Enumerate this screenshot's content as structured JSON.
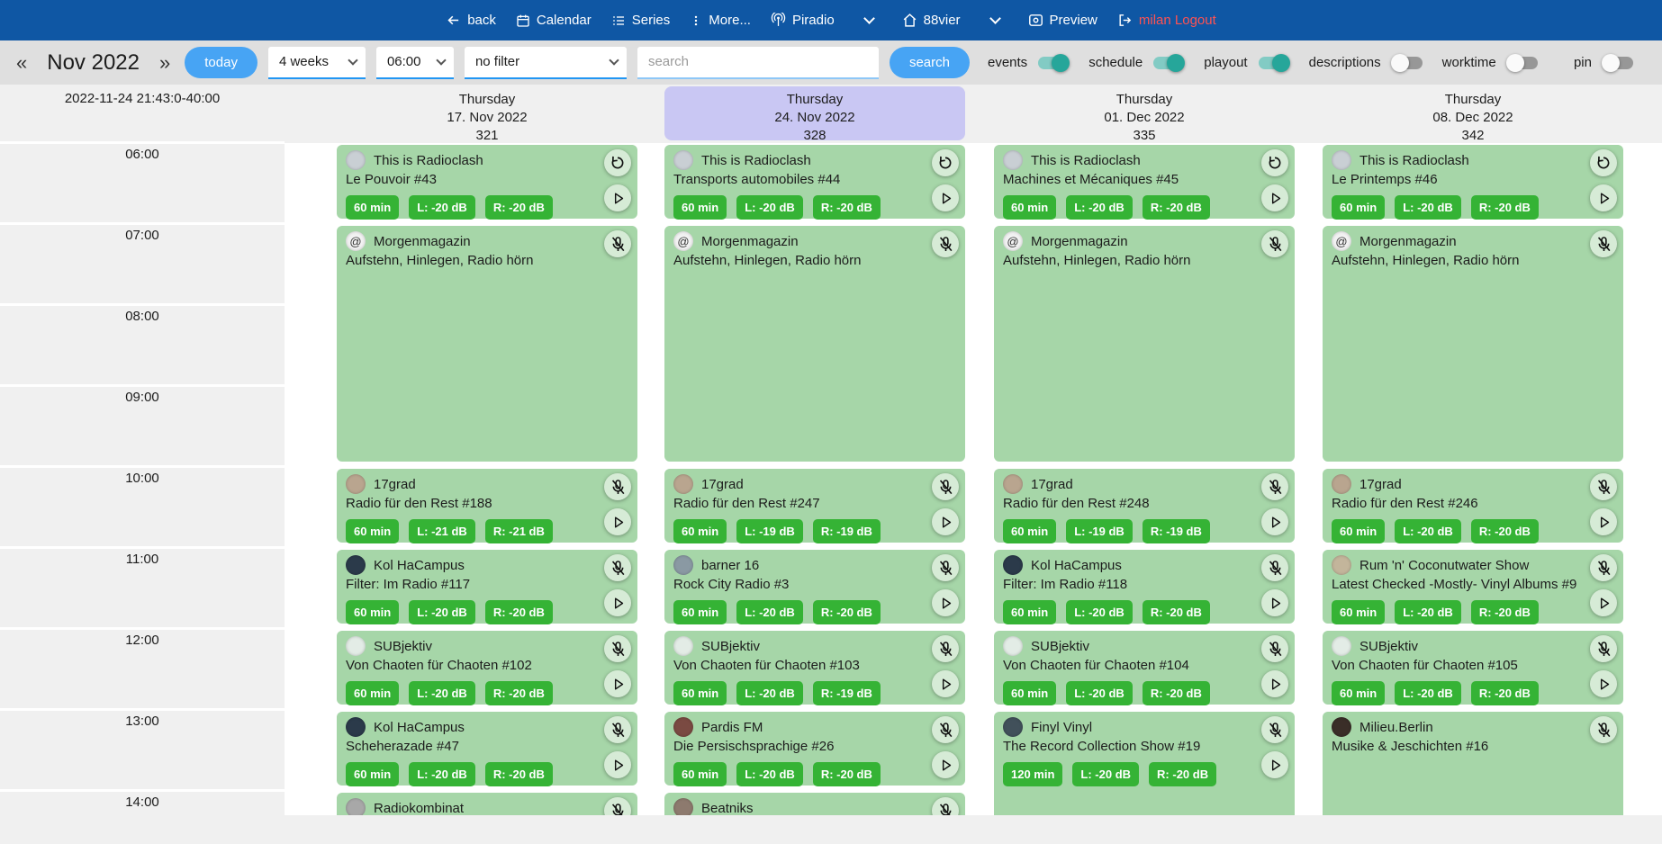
{
  "nav": {
    "back": "back",
    "calendar": "Calendar",
    "series": "Series",
    "more": "More...",
    "station": "Piradio",
    "channel": "88vier",
    "preview": "Preview",
    "logout": "milan Logout"
  },
  "toolbar": {
    "prev": "«",
    "next": "»",
    "month_label": "Nov 2022",
    "today_button": "today",
    "range_select": "4 weeks",
    "time_select": "06:00",
    "filter_select": "no filter",
    "search_placeholder": "search",
    "search_button": "search",
    "toggles": [
      {
        "label": "events",
        "on": true
      },
      {
        "label": "schedule",
        "on": true
      },
      {
        "label": "playout",
        "on": true
      },
      {
        "label": "descriptions",
        "on": false
      },
      {
        "label": "worktime",
        "on": false
      },
      {
        "label": "pin",
        "on": false,
        "align": "right"
      }
    ]
  },
  "timeline": {
    "now_label": "2022-11-24 21:43:0-40:00",
    "hours": [
      "06:00",
      "07:00",
      "08:00",
      "09:00",
      "10:00",
      "11:00",
      "12:00",
      "13:00",
      "14:00"
    ]
  },
  "colors": {
    "nav_blue": "#0f57a4",
    "accent_blue": "#47a4f4",
    "event_green": "#a6d6a8",
    "badge_green": "#35b335",
    "highlight_purple": "#c9c7f3",
    "logout_red": "#ff5252",
    "toggle_on": "#26a69a"
  },
  "columns": [
    {
      "day": "Thursday",
      "date": "17. Nov 2022",
      "daynum": "321",
      "highlight": false,
      "events": [
        {
          "title": "This is Radioclash",
          "subtitle": "Le Pouvoir #43",
          "start": 6,
          "dur": 1,
          "badges": [
            "60 min",
            "L: -20 dB",
            "R: -20 dB"
          ],
          "icons": [
            "replay",
            "play"
          ],
          "avatar": "#c9cfd4"
        },
        {
          "title": "Morgenmagazin",
          "subtitle": "Aufstehn, Hinlegen, Radio hörn",
          "start": 7,
          "dur": 3,
          "badges": [],
          "icons": [
            "mic-off"
          ],
          "avatar": "#f2f2f2",
          "avatar_glyph": "@"
        },
        {
          "title": "17grad",
          "subtitle": "Radio für den Rest #188",
          "start": 10,
          "dur": 1,
          "badges": [
            "60 min",
            "L: -21 dB",
            "R: -21 dB"
          ],
          "icons": [
            "mic-off",
            "play"
          ],
          "avatar": "#b9a58f"
        },
        {
          "title": "Kol HaCampus",
          "subtitle": "Filter: Im Radio #117",
          "start": 11,
          "dur": 1,
          "badges": [
            "60 min",
            "L: -20 dB",
            "R: -20 dB"
          ],
          "icons": [
            "mic-off",
            "play"
          ],
          "avatar": "#2b3a4a"
        },
        {
          "title": "SUBjektiv",
          "subtitle": "Von Chaoten für Chaoten #102",
          "start": 12,
          "dur": 1,
          "badges": [
            "60 min",
            "L: -20 dB",
            "R: -20 dB"
          ],
          "icons": [
            "mic-off",
            "play"
          ],
          "avatar": "#e3ece6"
        },
        {
          "title": "Kol HaCampus",
          "subtitle": "Scheherazade #47",
          "start": 13,
          "dur": 1,
          "badges": [
            "60 min",
            "L: -20 dB",
            "R: -20 dB"
          ],
          "icons": [
            "mic-off",
            "play"
          ],
          "avatar": "#2b3a4a"
        },
        {
          "title": "Radiokombinat",
          "subtitle": "",
          "start": 14,
          "dur": 1,
          "badges": [],
          "icons": [
            "mic-off"
          ],
          "avatar": "#a8a8a8"
        }
      ]
    },
    {
      "day": "Thursday",
      "date": "24. Nov 2022",
      "daynum": "328",
      "highlight": true,
      "events": [
        {
          "title": "This is Radioclash",
          "subtitle": "Transports automobiles #44",
          "start": 6,
          "dur": 1,
          "badges": [
            "60 min",
            "L: -20 dB",
            "R: -20 dB"
          ],
          "icons": [
            "replay",
            "play"
          ],
          "avatar": "#c9cfd4"
        },
        {
          "title": "Morgenmagazin",
          "subtitle": "Aufstehn, Hinlegen, Radio hörn",
          "start": 7,
          "dur": 3,
          "badges": [],
          "icons": [
            "mic-off"
          ],
          "avatar": "#f2f2f2",
          "avatar_glyph": "@"
        },
        {
          "title": "17grad",
          "subtitle": "Radio für den Rest #247",
          "start": 10,
          "dur": 1,
          "badges": [
            "60 min",
            "L: -19 dB",
            "R: -19 dB"
          ],
          "icons": [
            "mic-off",
            "play"
          ],
          "avatar": "#b9a58f"
        },
        {
          "title": "barner 16",
          "subtitle": "Rock City Radio #3",
          "start": 11,
          "dur": 1,
          "badges": [
            "60 min",
            "L: -20 dB",
            "R: -20 dB"
          ],
          "icons": [
            "mic-off",
            "play"
          ],
          "avatar": "#8a99a3"
        },
        {
          "title": "SUBjektiv",
          "subtitle": "Von Chaoten für Chaoten #103",
          "start": 12,
          "dur": 1,
          "badges": [
            "60 min",
            "L: -20 dB",
            "R: -19 dB"
          ],
          "icons": [
            "mic-off",
            "play"
          ],
          "avatar": "#e3ece6"
        },
        {
          "title": "Pardis FM",
          "subtitle": "Die Persischsprachige #26",
          "start": 13,
          "dur": 1,
          "badges": [
            "60 min",
            "L: -20 dB",
            "R: -20 dB"
          ],
          "icons": [
            "mic-off",
            "play"
          ],
          "avatar": "#7a4a42"
        },
        {
          "title": "Beatniks",
          "subtitle": "",
          "start": 14,
          "dur": 1,
          "badges": [],
          "icons": [
            "mic-off"
          ],
          "avatar": "#8d7a6e"
        }
      ]
    },
    {
      "day": "Thursday",
      "date": "01. Dec 2022",
      "daynum": "335",
      "highlight": false,
      "events": [
        {
          "title": "This is Radioclash",
          "subtitle": "Machines et Mécaniques #45",
          "start": 6,
          "dur": 1,
          "badges": [
            "60 min",
            "L: -20 dB",
            "R: -20 dB"
          ],
          "icons": [
            "replay",
            "play"
          ],
          "avatar": "#c9cfd4"
        },
        {
          "title": "Morgenmagazin",
          "subtitle": "Aufstehn, Hinlegen, Radio hörn",
          "start": 7,
          "dur": 3,
          "badges": [],
          "icons": [
            "mic-off"
          ],
          "avatar": "#f2f2f2",
          "avatar_glyph": "@"
        },
        {
          "title": "17grad",
          "subtitle": "Radio für den Rest #248",
          "start": 10,
          "dur": 1,
          "badges": [
            "60 min",
            "L: -19 dB",
            "R: -19 dB"
          ],
          "icons": [
            "mic-off",
            "play"
          ],
          "avatar": "#b9a58f"
        },
        {
          "title": "Kol HaCampus",
          "subtitle": "Filter: Im Radio #118",
          "start": 11,
          "dur": 1,
          "badges": [
            "60 min",
            "L: -20 dB",
            "R: -20 dB"
          ],
          "icons": [
            "mic-off",
            "play"
          ],
          "avatar": "#2b3a4a"
        },
        {
          "title": "SUBjektiv",
          "subtitle": "Von Chaoten für Chaoten #104",
          "start": 12,
          "dur": 1,
          "badges": [
            "60 min",
            "L: -20 dB",
            "R: -20 dB"
          ],
          "icons": [
            "mic-off",
            "play"
          ],
          "avatar": "#e3ece6"
        },
        {
          "title": "Finyl Vinyl",
          "subtitle": "The Record Collection Show #19",
          "start": 13,
          "dur": 2,
          "badges": [
            "120 min",
            "L: -20 dB",
            "R: -20 dB"
          ],
          "icons": [
            "mic-off",
            "play"
          ],
          "avatar": "#41505a"
        }
      ]
    },
    {
      "day": "Thursday",
      "date": "08. Dec 2022",
      "daynum": "342",
      "highlight": false,
      "events": [
        {
          "title": "This is Radioclash",
          "subtitle": "Le Printemps #46",
          "start": 6,
          "dur": 1,
          "badges": [
            "60 min",
            "L: -20 dB",
            "R: -20 dB"
          ],
          "icons": [
            "replay",
            "play"
          ],
          "avatar": "#c9cfd4"
        },
        {
          "title": "Morgenmagazin",
          "subtitle": "Aufstehn, Hinlegen, Radio hörn",
          "start": 7,
          "dur": 3,
          "badges": [],
          "icons": [
            "mic-off"
          ],
          "avatar": "#f2f2f2",
          "avatar_glyph": "@"
        },
        {
          "title": "17grad",
          "subtitle": "Radio für den Rest #246",
          "start": 10,
          "dur": 1,
          "badges": [
            "60 min",
            "L: -20 dB",
            "R: -20 dB"
          ],
          "icons": [
            "mic-off",
            "play"
          ],
          "avatar": "#b9a58f"
        },
        {
          "title": "Rum 'n' Coconutwater Show",
          "subtitle": "Latest Checked -Mostly- Vinyl Albums #9",
          "start": 11,
          "dur": 1,
          "badges": [
            "60 min",
            "L: -20 dB",
            "R: -20 dB"
          ],
          "icons": [
            "mic-off",
            "play"
          ],
          "avatar": "#c3b59b"
        },
        {
          "title": "SUBjektiv",
          "subtitle": "Von Chaoten für Chaoten #105",
          "start": 12,
          "dur": 1,
          "badges": [
            "60 min",
            "L: -20 dB",
            "R: -20 dB"
          ],
          "icons": [
            "mic-off",
            "play"
          ],
          "avatar": "#e3ece6"
        },
        {
          "title": "Milieu.Berlin",
          "subtitle": "Musike & Jeschichten #16",
          "start": 13,
          "dur": 2,
          "badges": [],
          "icons": [
            "mic-off"
          ],
          "avatar": "#3a2e28"
        }
      ]
    }
  ]
}
